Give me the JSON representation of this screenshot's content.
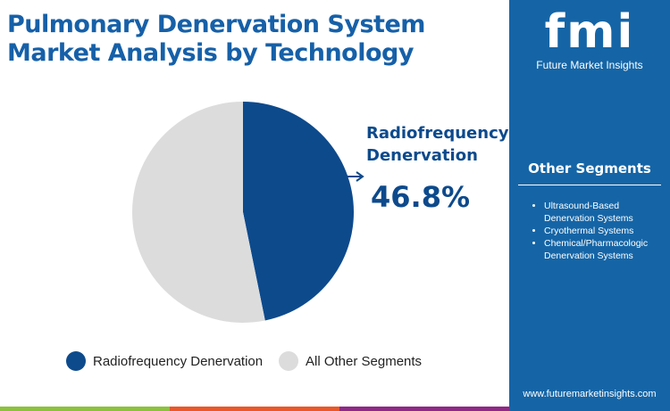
{
  "title": "Pulmonary Denervation System Market Analysis by Technology",
  "colors": {
    "primary": "#0d4a8c",
    "other": "#dcdcdc",
    "sidebar": "#1565a6"
  },
  "chart_data": {
    "type": "pie",
    "slices": [
      {
        "name": "Radiofrequency Denervation",
        "value": 46.8,
        "color": "#0d4a8c"
      },
      {
        "name": "All Other Segments",
        "value": 53.2,
        "color": "#dcdcdc"
      }
    ],
    "annotation": {
      "label": "Radiofrequency Denervation",
      "value": "46.8%"
    },
    "legend": "bottom"
  },
  "sidebar": {
    "logo": "fmi",
    "logo_sub": "Future Market Insights",
    "heading": "Other Segments",
    "items": [
      "Ultrasound-Based Denervation Systems",
      "Cryothermal Systems",
      "Chemical/Pharmacologic Denervation Systems"
    ],
    "url": "www.futuremarketinsights.com"
  }
}
